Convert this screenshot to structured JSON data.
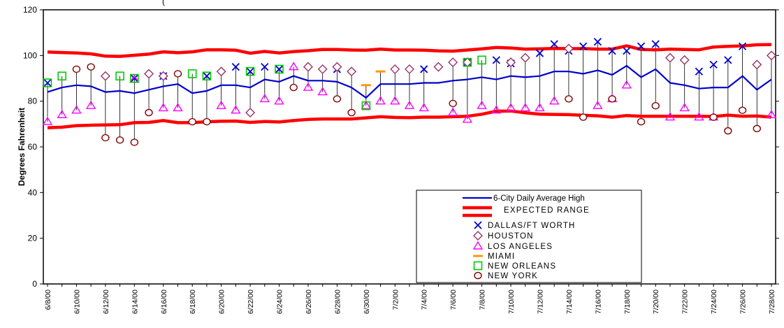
{
  "chart_data": {
    "type": "line",
    "title": "(",
    "ylabel": "Degrees Fahrenheit",
    "xlabel": "",
    "ylim": [
      0,
      120
    ],
    "y_ticks": [
      0,
      20,
      40,
      60,
      80,
      100,
      120
    ],
    "grid": false,
    "legend_position": "bottom-right",
    "dates": [
      "6/8/00",
      "6/9/00",
      "6/10/00",
      "6/11/00",
      "6/12/00",
      "6/13/00",
      "6/14/00",
      "6/15/00",
      "6/16/00",
      "6/17/00",
      "6/18/00",
      "6/19/00",
      "6/20/00",
      "6/21/00",
      "6/22/00",
      "6/23/00",
      "6/24/00",
      "6/25/00",
      "6/26/00",
      "6/27/00",
      "6/28/00",
      "6/29/00",
      "6/30/00",
      "7/1/00",
      "7/2/00",
      "7/3/00",
      "7/4/00",
      "7/5/00",
      "7/6/00",
      "7/7/00",
      "7/8/00",
      "7/9/00",
      "7/10/00",
      "7/11/00",
      "7/12/00",
      "7/13/00",
      "7/14/00",
      "7/15/00",
      "7/16/00",
      "7/17/00",
      "7/18/00",
      "7/19/00",
      "7/20/00",
      "7/21/00",
      "7/22/00",
      "7/23/00",
      "7/24/00",
      "7/25/00",
      "7/26/00",
      "7/27/00",
      "7/28/00"
    ],
    "tick_labels": [
      "6/8/00",
      "6/10/00",
      "6/12/00",
      "6/14/00",
      "6/16/00",
      "6/18/00",
      "6/20/00",
      "6/22/00",
      "6/24/00",
      "6/26/00",
      "6/28/00",
      "6/30/00",
      "7/2/00",
      "7/4/00",
      "7/6/00",
      "7/8/00",
      "7/10/00",
      "7/12/00",
      "7/14/00",
      "7/16/00",
      "7/18/00",
      "7/20/00",
      "7/22/00",
      "7/24/00",
      "7/26/00",
      "7/28/00"
    ],
    "series": [
      {
        "name": "6-City Daily Average High",
        "kind": "line",
        "color": "#0000cc",
        "values": [
          84,
          86,
          87,
          86.5,
          84,
          84.5,
          83.5,
          85,
          86.5,
          87.5,
          83.5,
          84.5,
          87,
          87,
          86,
          89.5,
          88.5,
          91,
          89,
          89,
          88.5,
          86,
          81.5,
          87.5,
          87.5,
          87.5,
          88,
          88,
          89,
          89.5,
          90.5,
          89.5,
          91,
          90.5,
          91,
          93,
          93,
          92,
          93.5,
          91.5,
          95.5,
          90.5,
          94,
          88,
          87,
          85.5,
          86,
          86,
          91,
          85,
          89.5
        ]
      },
      {
        "name": "EXPECTED RANGE",
        "kind": "band-upper",
        "color": "#ff0000",
        "values": [
          101.5,
          101.3,
          101.1,
          100.7,
          99.7,
          99.6,
          100.1,
          100.6,
          101.6,
          101.2,
          101.6,
          102.5,
          102.5,
          102.3,
          101,
          101.8,
          101.1,
          101.7,
          102.1,
          102.6,
          102.6,
          102.4,
          102.3,
          102.8,
          102.4,
          102.4,
          102.3,
          102,
          101.9,
          102.4,
          102.9,
          103.5,
          103.3,
          102.8,
          102.9,
          103.1,
          103,
          103,
          102.8,
          102.8,
          104.2,
          102.6,
          102.5,
          102.8,
          102.6,
          102.5,
          103.7,
          104,
          104.2,
          104.7,
          104.8
        ]
      },
      {
        "name": "EXPECTED RANGE",
        "kind": "band-lower",
        "color": "#ff0000",
        "values": [
          68.4,
          68.6,
          69.3,
          69.5,
          69.6,
          69.7,
          70.6,
          70.7,
          71.5,
          70.6,
          70.6,
          71,
          71.2,
          71.3,
          70.7,
          71.1,
          70.9,
          71.5,
          72,
          72.2,
          72.2,
          72.2,
          72.7,
          73.2,
          72.9,
          72.8,
          73,
          73,
          73.2,
          73.4,
          74.3,
          75.6,
          75.7,
          74.9,
          74.3,
          74.2,
          74.1,
          73.8,
          73.6,
          73,
          73.7,
          73.4,
          73.4,
          73.4,
          73.4,
          73.4,
          73.3,
          73.9,
          73.4,
          73.5,
          73
        ]
      },
      {
        "name": "DALLAS/FT WORTH",
        "kind": "marker",
        "marker": "x",
        "color": "#0000cc",
        "values": [
          88,
          null,
          null,
          null,
          null,
          null,
          90,
          null,
          91,
          null,
          null,
          91,
          null,
          95,
          93,
          95,
          94,
          null,
          null,
          null,
          94,
          null,
          null,
          null,
          null,
          null,
          94,
          null,
          null,
          97,
          null,
          98,
          96.5,
          null,
          101,
          105,
          102,
          104,
          106,
          102,
          102,
          104,
          105,
          null,
          null,
          93,
          96,
          98,
          104,
          null,
          null
        ]
      },
      {
        "name": "HOUSTON",
        "kind": "marker",
        "marker": "diamond",
        "color": "#993366",
        "values": [
          null,
          null,
          null,
          null,
          91,
          null,
          null,
          92,
          91,
          null,
          null,
          null,
          93,
          null,
          75,
          null,
          null,
          null,
          95,
          94,
          95,
          93,
          null,
          null,
          94,
          94,
          null,
          95,
          97,
          97,
          null,
          null,
          97,
          99,
          null,
          null,
          103,
          null,
          null,
          null,
          null,
          null,
          null,
          99,
          98,
          null,
          null,
          null,
          null,
          96,
          100
        ]
      },
      {
        "name": "LOS ANGELES",
        "kind": "marker",
        "marker": "triangle",
        "color": "#ff00ff",
        "values": [
          71,
          74,
          76,
          78,
          null,
          null,
          89.5,
          null,
          77,
          77,
          null,
          null,
          78,
          76,
          null,
          81,
          80,
          95,
          86,
          84,
          null,
          null,
          78,
          80,
          80,
          78,
          77,
          null,
          75,
          72,
          78,
          76,
          77,
          77,
          77,
          80,
          null,
          null,
          78,
          81,
          87,
          null,
          null,
          73,
          77,
          73,
          73,
          null,
          null,
          null,
          74
        ]
      },
      {
        "name": "MIAMI",
        "kind": "marker",
        "marker": "dash",
        "color": "#ff9900",
        "values": [
          null,
          null,
          null,
          null,
          null,
          null,
          null,
          null,
          null,
          null,
          null,
          null,
          null,
          null,
          null,
          null,
          null,
          null,
          null,
          null,
          null,
          null,
          87,
          93,
          null,
          null,
          null,
          null,
          null,
          null,
          null,
          null,
          null,
          null,
          null,
          null,
          null,
          null,
          null,
          null,
          null,
          null,
          null,
          null,
          null,
          null,
          null,
          null,
          null,
          null,
          null
        ]
      },
      {
        "name": "NEW ORLEANS",
        "kind": "marker",
        "marker": "square",
        "color": "#00cc00",
        "values": [
          88,
          91,
          null,
          null,
          null,
          91,
          90,
          null,
          null,
          null,
          92,
          91,
          null,
          null,
          93,
          null,
          94,
          null,
          null,
          null,
          null,
          null,
          78,
          null,
          null,
          null,
          null,
          null,
          null,
          97,
          98,
          null,
          null,
          null,
          null,
          null,
          null,
          null,
          null,
          null,
          null,
          null,
          null,
          null,
          null,
          null,
          null,
          null,
          null,
          null,
          null
        ]
      },
      {
        "name": "NEW YORK",
        "kind": "marker",
        "marker": "circle",
        "color": "#800000",
        "values": [
          null,
          null,
          94,
          95,
          64,
          63,
          62,
          75,
          null,
          92,
          71,
          71,
          null,
          null,
          null,
          null,
          null,
          86,
          null,
          null,
          81,
          75,
          null,
          null,
          null,
          null,
          null,
          null,
          79,
          null,
          null,
          null,
          null,
          null,
          null,
          null,
          81,
          73,
          null,
          81,
          null,
          71,
          78,
          null,
          null,
          null,
          73,
          67,
          76,
          68,
          null
        ]
      }
    ]
  },
  "legend": {
    "items": [
      {
        "label": "6-City Daily Average High",
        "key": "line-blue"
      },
      {
        "label": "EXPECTED RANGE",
        "key": "band-red"
      },
      {
        "label": "DALLAS/FT WORTH",
        "key": "x"
      },
      {
        "label": "HOUSTON",
        "key": "diamond"
      },
      {
        "label": "LOS ANGELES",
        "key": "triangle"
      },
      {
        "label": "MIAMI",
        "key": "dash"
      },
      {
        "label": "NEW ORLEANS",
        "key": "square"
      },
      {
        "label": "NEW YORK",
        "key": "circle"
      }
    ]
  }
}
